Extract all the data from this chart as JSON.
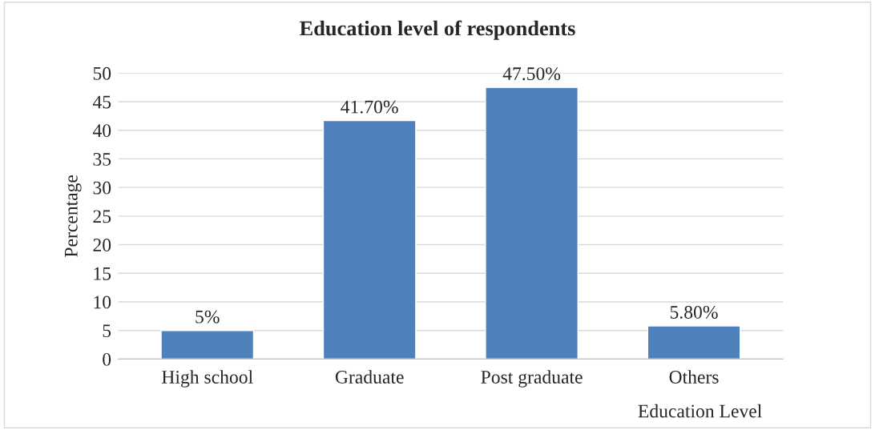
{
  "chart_data": {
    "type": "bar",
    "title": "Education level of respondents",
    "xlabel": "Education Level",
    "ylabel": "Percentage",
    "categories": [
      "High school",
      "Graduate",
      "Post graduate",
      "Others"
    ],
    "values": [
      5,
      41.7,
      47.5,
      5.8
    ],
    "value_labels": [
      "5%",
      "41.70%",
      "47.50%",
      "5.80%"
    ],
    "color": "#4f81bd",
    "ylim": [
      0,
      50
    ],
    "yticks": [
      0,
      5,
      10,
      15,
      20,
      25,
      30,
      35,
      40,
      45,
      50
    ],
    "grid": "y",
    "legend": false
  }
}
